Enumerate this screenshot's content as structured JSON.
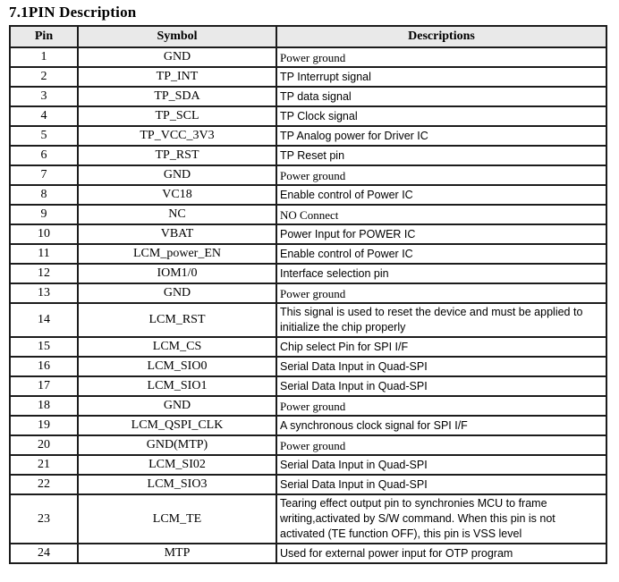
{
  "page_title": "7.1PIN Description",
  "table": {
    "headers": [
      "Pin",
      "Symbol",
      "Descriptions"
    ],
    "rows": [
      {
        "pin": "1",
        "symbol": "GND",
        "desc": "Power ground",
        "desc_font": "serif"
      },
      {
        "pin": "2",
        "symbol": "TP_INT",
        "desc": "TP Interrupt signal",
        "desc_font": "sans"
      },
      {
        "pin": "3",
        "symbol": "TP_SDA",
        "desc": "TP data signal",
        "desc_font": "sans"
      },
      {
        "pin": "4",
        "symbol": "TP_SCL",
        "desc": "TP Clock signal",
        "desc_font": "sans"
      },
      {
        "pin": "5",
        "symbol": "TP_VCC_3V3",
        "desc": "TP Analog power for Driver IC",
        "desc_font": "sans"
      },
      {
        "pin": "6",
        "symbol": "TP_RST",
        "desc": "TP Reset pin",
        "desc_font": "sans"
      },
      {
        "pin": "7",
        "symbol": "GND",
        "desc": "Power ground",
        "desc_font": "serif"
      },
      {
        "pin": "8",
        "symbol": "VC18",
        "desc": "Enable control of Power IC",
        "desc_font": "sans"
      },
      {
        "pin": "9",
        "symbol": "NC",
        "desc": "NO Connect",
        "desc_font": "serif"
      },
      {
        "pin": "10",
        "symbol": "VBAT",
        "desc": "Power Input for POWER IC",
        "desc_font": "sans"
      },
      {
        "pin": "11",
        "symbol": "LCM_power_EN",
        "desc": "Enable control of Power IC",
        "desc_font": "sans"
      },
      {
        "pin": "12",
        "symbol": "IOM1/0",
        "desc": "Interface selection pin",
        "desc_font": "sans"
      },
      {
        "pin": "13",
        "symbol": "GND",
        "desc": "Power ground",
        "desc_font": "serif"
      },
      {
        "pin": "14",
        "symbol": "LCM_RST",
        "desc": "This signal is used to reset the device and must be applied to initialize the chip properly",
        "desc_font": "sans"
      },
      {
        "pin": "15",
        "symbol": "LCM_CS",
        "desc": "Chip select Pin for SPI I/F",
        "desc_font": "sans"
      },
      {
        "pin": "16",
        "symbol": "LCM_SIO0",
        "desc": "Serial Data Input in Quad-SPI",
        "desc_font": "sans"
      },
      {
        "pin": "17",
        "symbol": "LCM_SIO1",
        "desc": "Serial Data Input in Quad-SPI",
        "desc_font": "sans"
      },
      {
        "pin": "18",
        "symbol": "GND",
        "desc": "Power ground",
        "desc_font": "serif"
      },
      {
        "pin": "19",
        "symbol": "LCM_QSPI_CLK",
        "desc": "A synchronous clock signal for SPI I/F",
        "desc_font": "sans"
      },
      {
        "pin": "20",
        "symbol": "GND(MTP)",
        "desc": "Power ground",
        "desc_font": "serif"
      },
      {
        "pin": "21",
        "symbol": "LCM_SI02",
        "desc": "Serial Data Input in Quad-SPI",
        "desc_font": "sans"
      },
      {
        "pin": "22",
        "symbol": "LCM_SIO3",
        "desc": "Serial Data Input in Quad-SPI",
        "desc_font": "sans"
      },
      {
        "pin": "23",
        "symbol": "LCM_TE",
        "desc": "Tearing effect output pin to synchronies MCU to frame writing,activated by S/W command. When this pin is not activated (TE function OFF), this pin is VSS level",
        "desc_font": "sans"
      },
      {
        "pin": "24",
        "symbol": "MTP",
        "desc": "Used for external power input for OTP program",
        "desc_font": "sans"
      }
    ]
  }
}
